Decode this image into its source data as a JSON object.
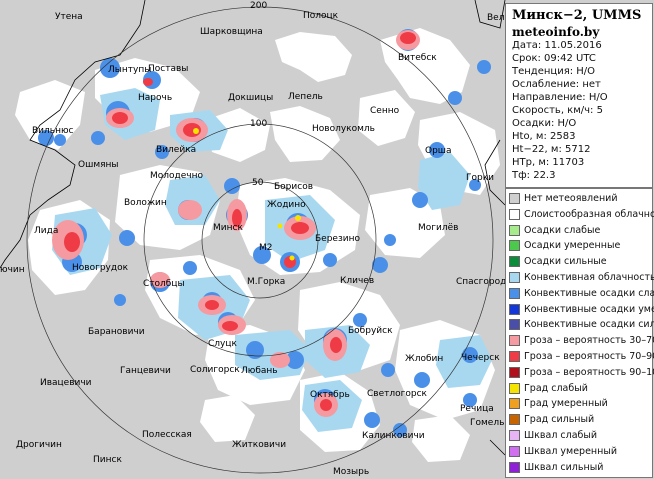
{
  "radar": {
    "station": "Минск−2, UMMS",
    "site": "meteoinfo.by",
    "fields": [
      "Дата: 11.05.2016",
      "Срок: 09:42 UTC",
      "Тенденция: Н/О",
      "Ослабление: нет",
      "Направление: Н/О",
      "Скорость, км/ч: 5",
      "Осадки: Н/О",
      "Hto, м: 2583",
      "Ht−22, м: 5712",
      "HTp, м: 11703",
      "Tф: 22.3"
    ]
  },
  "rings": {
    "labels": [
      "200",
      "100",
      "50"
    ],
    "center_label": "M2"
  },
  "colors": {
    "background": "#cfcfcf",
    "cloud": "#ffffff",
    "conv_cloud": "#a8d8f0",
    "conv_weak": "#4a90e8",
    "storm30": "#f59aa0",
    "storm70": "#ef3b46",
    "storm90": "#b0101c",
    "hail": "#f5e400"
  },
  "legend": [
    {
      "label": "Нет метеоявлений",
      "color": "#cfcfcf"
    },
    {
      "label": "Слоистообразная облачность",
      "color": "#ffffff"
    },
    {
      "label": "Осадки слабые",
      "color": "#a6ec8c"
    },
    {
      "label": "Осадки умеренные",
      "color": "#4cc84c"
    },
    {
      "label": "Осадки сильные",
      "color": "#0d8c3c"
    },
    {
      "label": "Конвективная облачность",
      "color": "#a8d8f0"
    },
    {
      "label": "Конвективные осадки слабые",
      "color": "#4a90e8"
    },
    {
      "label": "Конвективные осадки умерен.",
      "color": "#1438d8"
    },
    {
      "label": "Конвективные осадки сильные",
      "color": "#4b4ea8"
    },
    {
      "label": "Гроза – вероятность 30–70%",
      "color": "#f59aa0"
    },
    {
      "label": "Гроза – вероятность 70–90%",
      "color": "#ef3b46"
    },
    {
      "label": "Гроза – вероятность 90–100%",
      "color": "#b0101c"
    },
    {
      "label": "Град слабый",
      "color": "#f5e400"
    },
    {
      "label": "Град умеренный",
      "color": "#f0a020"
    },
    {
      "label": "Град сильный",
      "color": "#c86400"
    },
    {
      "label": "Шквал слабый",
      "color": "#e6b4f5"
    },
    {
      "label": "Шквал умеренный",
      "color": "#d070f0"
    },
    {
      "label": "Шквал сильный",
      "color": "#9020d8"
    }
  ],
  "cities": [
    {
      "name": "Утена"
    },
    {
      "name": "Шарковщина"
    },
    {
      "name": "Полоцк"
    },
    {
      "name": "Витебск"
    },
    {
      "name": "Лынтупы"
    },
    {
      "name": "Поставы"
    },
    {
      "name": "Нарочь"
    },
    {
      "name": "Докшицы"
    },
    {
      "name": "Лепель"
    },
    {
      "name": "Сенно"
    },
    {
      "name": "Вильнюс"
    },
    {
      "name": "Вилейка"
    },
    {
      "name": "Новолукомль"
    },
    {
      "name": "Орша"
    },
    {
      "name": "Ошмяны"
    },
    {
      "name": "Молодечно"
    },
    {
      "name": "Борисов"
    },
    {
      "name": "Горки"
    },
    {
      "name": "Воложин"
    },
    {
      "name": "Жодино"
    },
    {
      "name": "Лида"
    },
    {
      "name": "Минск"
    },
    {
      "name": "Березино"
    },
    {
      "name": "Могилёв"
    },
    {
      "name": "Новогрудок"
    },
    {
      "name": "Столбцы"
    },
    {
      "name": "М.Горка"
    },
    {
      "name": "Кличев"
    },
    {
      "name": "Спасгород"
    },
    {
      "name": "Барановичи"
    },
    {
      "name": "Слуцк"
    },
    {
      "name": "Бобруйск"
    },
    {
      "name": "Ганцевичи"
    },
    {
      "name": "Солигорск"
    },
    {
      "name": "Любань"
    },
    {
      "name": "Жлобин"
    },
    {
      "name": "Ивацевичи"
    },
    {
      "name": "Октябрь"
    },
    {
      "name": "Светлогорск"
    },
    {
      "name": "Речица"
    },
    {
      "name": "Полесская"
    },
    {
      "name": "Гомель"
    },
    {
      "name": "Дрогичин"
    },
    {
      "name": "Пинск"
    },
    {
      "name": "Житковичи"
    },
    {
      "name": "Калинковичи"
    },
    {
      "name": "Мозырь"
    },
    {
      "name": "Вели"
    },
    {
      "name": "ючин"
    },
    {
      "name": "Чечерск"
    }
  ]
}
